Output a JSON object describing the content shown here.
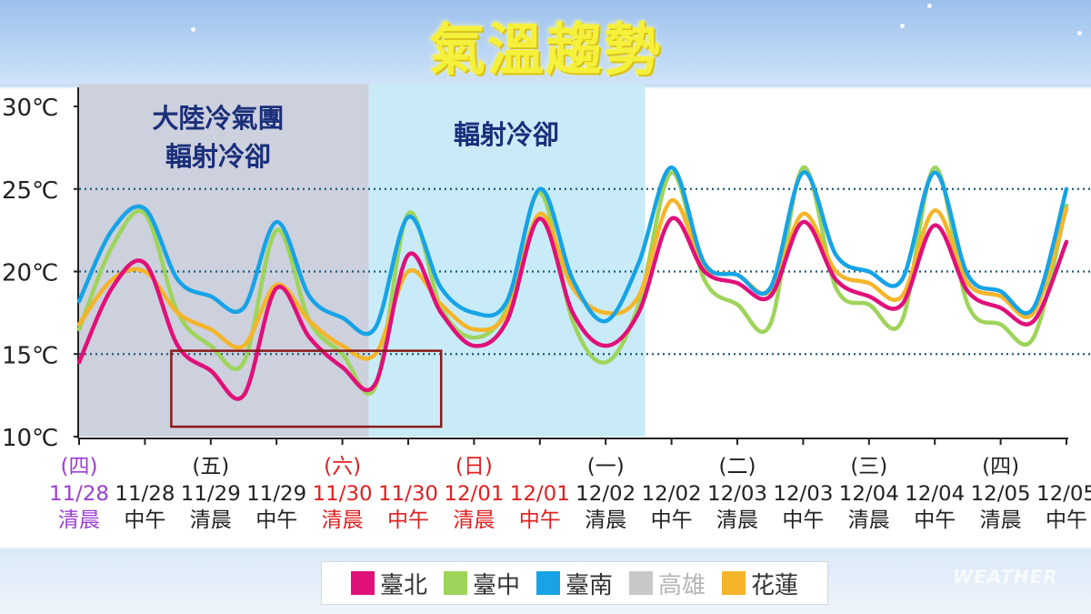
{
  "title": "氣溫趨勢",
  "watermark": "WEATHER",
  "annotations": {
    "zone1_line1": "大陸冷氣團",
    "zone1_line2": "輻射冷卻",
    "zone2": "輻射冷卻"
  },
  "colors": {
    "taipei": "#e0107a",
    "taichung": "#9ed45a",
    "tainan": "#17a3e6",
    "kaohsiung": "#c8c8c8",
    "hualien": "#f5b52a",
    "zone1": "#cdd0dd",
    "zone2": "#c8ebf7",
    "box": "#8b1a1a",
    "gridline": "#1f5b78"
  },
  "chart_data": {
    "type": "line",
    "ylim": [
      10,
      30
    ],
    "yticks": [
      {
        "value": 30,
        "label": "30℃"
      },
      {
        "value": 25,
        "label": "25℃"
      },
      {
        "value": 20,
        "label": "20℃"
      },
      {
        "value": 15,
        "label": "15℃"
      },
      {
        "value": 10,
        "label": "10℃"
      }
    ],
    "dotted_gridlines": [
      25,
      20,
      15
    ],
    "x_ticks": [
      {
        "day": "(四)",
        "date": "11/28",
        "time": "清晨",
        "color": "#9b3fd0"
      },
      {
        "day": "",
        "date": "11/28",
        "time": "中午",
        "color": "#222222"
      },
      {
        "day": "(五)",
        "date": "11/29",
        "time": "清晨",
        "color": "#222222"
      },
      {
        "day": "",
        "date": "11/29",
        "time": "中午",
        "color": "#222222"
      },
      {
        "day": "(六)",
        "date": "11/30",
        "time": "清晨",
        "color": "#e02020"
      },
      {
        "day": "",
        "date": "11/30",
        "time": "中午",
        "color": "#e02020"
      },
      {
        "day": "(日)",
        "date": "12/01",
        "time": "清晨",
        "color": "#e02020"
      },
      {
        "day": "",
        "date": "12/01",
        "time": "中午",
        "color": "#e02020"
      },
      {
        "day": "(一)",
        "date": "12/02",
        "time": "清晨",
        "color": "#222222"
      },
      {
        "day": "",
        "date": "12/02",
        "time": "中午",
        "color": "#222222"
      },
      {
        "day": "(二)",
        "date": "12/03",
        "time": "清晨",
        "color": "#222222"
      },
      {
        "day": "",
        "date": "12/03",
        "time": "中午",
        "color": "#222222"
      },
      {
        "day": "(三)",
        "date": "12/04",
        "time": "清晨",
        "color": "#222222"
      },
      {
        "day": "",
        "date": "12/04",
        "time": "中午",
        "color": "#222222"
      },
      {
        "day": "(四)",
        "date": "12/05",
        "time": "清晨",
        "color": "#222222"
      },
      {
        "day": "",
        "date": "12/05",
        "time": "中午",
        "color": "#222222"
      }
    ],
    "x_range": [
      0,
      15
    ],
    "shaded_regions": [
      {
        "from": -0.05,
        "to": 4.4,
        "color_key": "zone1"
      },
      {
        "from": 4.4,
        "to": 8.6,
        "color_key": "zone2"
      }
    ],
    "highlight_box": {
      "x_from": 1.4,
      "x_to": 5.5,
      "y_from": 10.6,
      "y_to": 15.2
    },
    "series": [
      {
        "name": "臺北",
        "color_key": "taipei",
        "points": [
          [
            0,
            14.5
          ],
          [
            0.5,
            19.0
          ],
          [
            1,
            20.5
          ],
          [
            1.5,
            15.5
          ],
          [
            2,
            14.0
          ],
          [
            2.5,
            12.5
          ],
          [
            3,
            19.0
          ],
          [
            3.5,
            16.0
          ],
          [
            4,
            14.2
          ],
          [
            4.5,
            13.2
          ],
          [
            5,
            21.0
          ],
          [
            5.5,
            17.5
          ],
          [
            6,
            15.5
          ],
          [
            6.5,
            17.0
          ],
          [
            7,
            23.2
          ],
          [
            7.5,
            17.5
          ],
          [
            8,
            15.5
          ],
          [
            8.5,
            17.5
          ],
          [
            9,
            23.2
          ],
          [
            9.5,
            20.0
          ],
          [
            10,
            19.3
          ],
          [
            10.5,
            18.5
          ],
          [
            11,
            23.0
          ],
          [
            11.5,
            19.5
          ],
          [
            12,
            18.5
          ],
          [
            12.5,
            18.0
          ],
          [
            13,
            22.8
          ],
          [
            13.5,
            18.8
          ],
          [
            14,
            17.8
          ],
          [
            14.5,
            17.0
          ],
          [
            15,
            21.8
          ]
        ]
      },
      {
        "name": "臺中",
        "color_key": "taichung",
        "points": [
          [
            0,
            16.5
          ],
          [
            0.5,
            21.5
          ],
          [
            1,
            23.5
          ],
          [
            1.5,
            17.5
          ],
          [
            2,
            15.5
          ],
          [
            2.5,
            14.5
          ],
          [
            3,
            22.5
          ],
          [
            3.5,
            17.0
          ],
          [
            4,
            15.0
          ],
          [
            4.5,
            13.0
          ],
          [
            5,
            23.5
          ],
          [
            5.5,
            17.8
          ],
          [
            6,
            16.0
          ],
          [
            6.5,
            17.8
          ],
          [
            7,
            24.8
          ],
          [
            7.5,
            17.0
          ],
          [
            8,
            14.5
          ],
          [
            8.5,
            18.0
          ],
          [
            9,
            26.0
          ],
          [
            9.5,
            19.5
          ],
          [
            10,
            18.0
          ],
          [
            10.5,
            16.8
          ],
          [
            11,
            26.3
          ],
          [
            11.5,
            19.0
          ],
          [
            12,
            18.0
          ],
          [
            12.5,
            17.0
          ],
          [
            13,
            26.3
          ],
          [
            13.5,
            18.0
          ],
          [
            14,
            16.8
          ],
          [
            14.5,
            16.0
          ],
          [
            15,
            24.0
          ]
        ]
      },
      {
        "name": "臺南",
        "color_key": "tainan",
        "points": [
          [
            0,
            18.2
          ],
          [
            0.5,
            22.5
          ],
          [
            1,
            23.8
          ],
          [
            1.5,
            19.5
          ],
          [
            2,
            18.5
          ],
          [
            2.5,
            17.8
          ],
          [
            3,
            23.0
          ],
          [
            3.5,
            18.5
          ],
          [
            4,
            17.2
          ],
          [
            4.5,
            16.6
          ],
          [
            5,
            23.3
          ],
          [
            5.5,
            19.0
          ],
          [
            6,
            17.5
          ],
          [
            6.5,
            18.2
          ],
          [
            7,
            25.0
          ],
          [
            7.5,
            19.5
          ],
          [
            8,
            17.0
          ],
          [
            8.5,
            20.5
          ],
          [
            9,
            26.3
          ],
          [
            9.5,
            20.5
          ],
          [
            10,
            19.8
          ],
          [
            10.5,
            19.0
          ],
          [
            11,
            26.0
          ],
          [
            11.5,
            21.0
          ],
          [
            12,
            20.0
          ],
          [
            12.5,
            19.5
          ],
          [
            13,
            26.0
          ],
          [
            13.5,
            19.8
          ],
          [
            14,
            18.8
          ],
          [
            14.5,
            17.8
          ],
          [
            15,
            25.0
          ]
        ]
      },
      {
        "name": "高雄",
        "color_key": "kaohsiung",
        "points": []
      },
      {
        "name": "花蓮",
        "color_key": "hualien",
        "points": [
          [
            0,
            16.8
          ],
          [
            0.5,
            19.5
          ],
          [
            1,
            20.0
          ],
          [
            1.5,
            17.5
          ],
          [
            2,
            16.5
          ],
          [
            2.5,
            15.5
          ],
          [
            3,
            19.2
          ],
          [
            3.5,
            17.0
          ],
          [
            4,
            15.5
          ],
          [
            4.5,
            15.0
          ],
          [
            5,
            20.0
          ],
          [
            5.5,
            18.0
          ],
          [
            6,
            16.5
          ],
          [
            6.5,
            17.5
          ],
          [
            7,
            23.5
          ],
          [
            7.5,
            19.0
          ],
          [
            8,
            17.5
          ],
          [
            8.5,
            18.5
          ],
          [
            9,
            24.3
          ],
          [
            9.5,
            20.3
          ],
          [
            10,
            19.8
          ],
          [
            10.5,
            18.8
          ],
          [
            11,
            23.5
          ],
          [
            11.5,
            20.0
          ],
          [
            12,
            19.3
          ],
          [
            12.5,
            18.5
          ],
          [
            13,
            23.7
          ],
          [
            13.5,
            19.3
          ],
          [
            14,
            18.5
          ],
          [
            14.5,
            17.5
          ],
          [
            15,
            23.8
          ]
        ]
      }
    ]
  },
  "legend": [
    {
      "label": "臺北",
      "color_key": "taipei"
    },
    {
      "label": "臺中",
      "color_key": "taichung"
    },
    {
      "label": "臺南",
      "color_key": "tainan"
    },
    {
      "label": "高雄",
      "color_key": "kaohsiung"
    },
    {
      "label": "花蓮",
      "color_key": "hualien"
    }
  ]
}
